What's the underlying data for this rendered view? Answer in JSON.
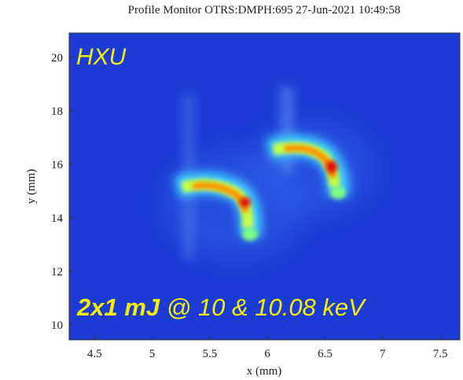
{
  "chart_data": {
    "type": "image",
    "title": "Profile Monitor OTRS:DMPH:695 27-Jun-2021 10:49:58",
    "x_label": "x (mm)",
    "y_label": "y (mm)",
    "xlim": [
      4.28,
      7.67
    ],
    "ylim": [
      9.44,
      20.91
    ],
    "xticks": [
      4.5,
      5,
      5.5,
      6,
      6.5,
      7,
      7.5
    ],
    "yticks": [
      10,
      12,
      14,
      16,
      18,
      20
    ],
    "annotations": [
      "HXU",
      "2x1 mJ",
      "@ 10 & 10.08 keV"
    ]
  }
}
